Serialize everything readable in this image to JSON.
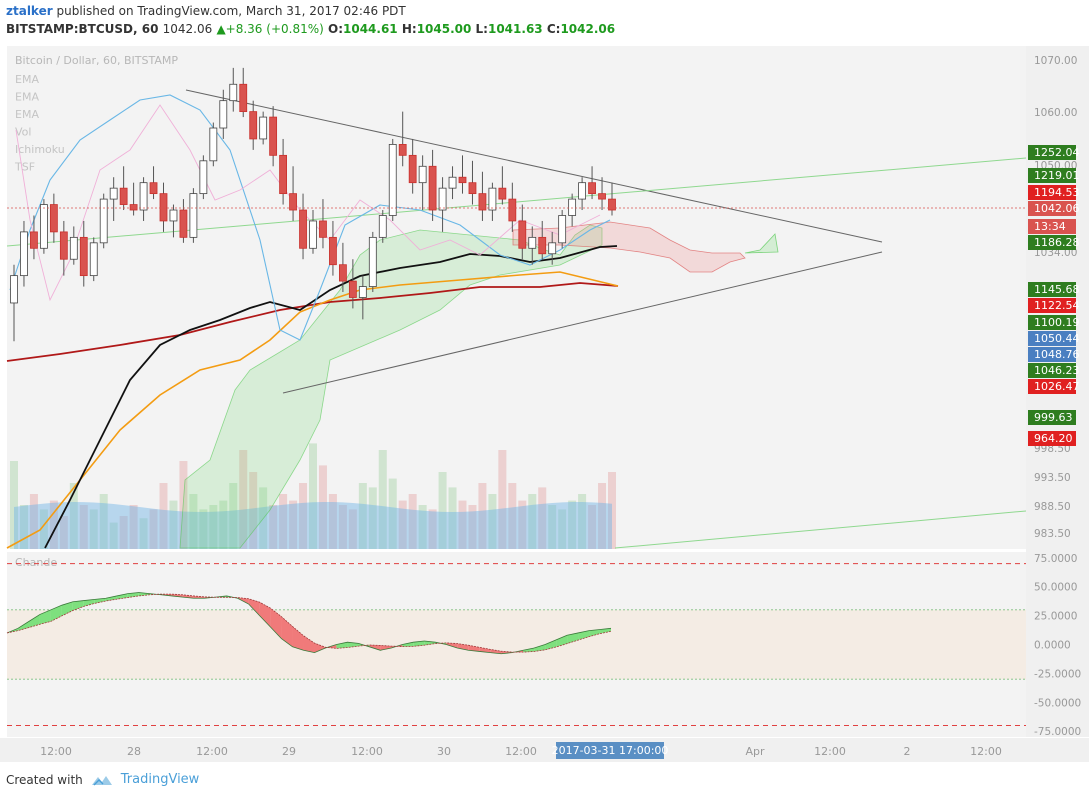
{
  "header": {
    "user": "ztalker",
    "published_text": "published on TradingView.com, March 31, 2017 02:46 PDT",
    "symbol": "BITSTAMP:BTCUSD, 60",
    "last": "1042.06",
    "change": "+8.36 (+0.81%)",
    "o_label": "O:",
    "o": "1044.61",
    "h_label": "H:",
    "h": "1045.00",
    "l_label": "L:",
    "l": "1041.63",
    "c_label": "C:",
    "c": "1042.06"
  },
  "chart_data": {
    "type": "candlestick",
    "title": "Bitcoin / Dollar, 60, BITSTAMP",
    "indicators": [
      "EMA",
      "EMA",
      "EMA",
      "Vol",
      "Ichimoku",
      "TSF"
    ],
    "price_axis_ticks": [
      "1070.00",
      "1060.00",
      "1050.00",
      "1034.00",
      "998.50",
      "993.50",
      "988.50",
      "983.50"
    ],
    "price_range": [
      980,
      1072
    ],
    "time_axis_ticks": [
      "12:00",
      "28",
      "12:00",
      "29",
      "12:00",
      "30",
      "12:00",
      "12:00",
      "Apr",
      "12:00",
      "2",
      "12:00"
    ],
    "crosshair_time": "2017-03-31 17:00:00",
    "price_tags": [
      {
        "label": "1252.04",
        "color": "#2e7d1f"
      },
      {
        "label": "1219.01",
        "color": "#2e7d1f"
      },
      {
        "label": "1194.53",
        "color": "#e02020"
      },
      {
        "label": "1042.06",
        "color": "#d9534f"
      },
      {
        "label": "13:34",
        "color": "#d9534f"
      },
      {
        "label": "1186.28",
        "color": "#2e7d1f"
      },
      {
        "label": "1145.68",
        "color": "#2e7d1f"
      },
      {
        "label": "1122.54",
        "color": "#e02020"
      },
      {
        "label": "1100.19",
        "color": "#2e7d1f"
      },
      {
        "label": "1050.44",
        "color": "#4a7fc1"
      },
      {
        "label": "1048.76",
        "color": "#4a7fc1"
      },
      {
        "label": "1046.23",
        "color": "#2e7d1f"
      },
      {
        "label": "1026.47",
        "color": "#e02020"
      },
      {
        "label": "999.63",
        "color": "#2e7d1f"
      },
      {
        "label": "964.20",
        "color": "#e02020"
      }
    ],
    "candles": [
      [
        1025,
        1032,
        1018,
        1030
      ],
      [
        1030,
        1040,
        1028,
        1038
      ],
      [
        1038,
        1041,
        1033,
        1035
      ],
      [
        1035,
        1044,
        1034,
        1043
      ],
      [
        1043,
        1045,
        1036,
        1038
      ],
      [
        1038,
        1040,
        1030,
        1033
      ],
      [
        1033,
        1039,
        1032,
        1037
      ],
      [
        1037,
        1040,
        1028,
        1030
      ],
      [
        1030,
        1037,
        1029,
        1036
      ],
      [
        1036,
        1045,
        1035,
        1044
      ],
      [
        1044,
        1048,
        1040,
        1046
      ],
      [
        1046,
        1050,
        1042,
        1043
      ],
      [
        1043,
        1047,
        1041,
        1042
      ],
      [
        1042,
        1048,
        1040,
        1047
      ],
      [
        1047,
        1050,
        1044,
        1045
      ],
      [
        1045,
        1047,
        1038,
        1040
      ],
      [
        1040,
        1043,
        1037,
        1042
      ],
      [
        1042,
        1044,
        1036,
        1037
      ],
      [
        1037,
        1046,
        1036,
        1045
      ],
      [
        1045,
        1052,
        1044,
        1051
      ],
      [
        1051,
        1058,
        1050,
        1057
      ],
      [
        1057,
        1064,
        1055,
        1062
      ],
      [
        1062,
        1068,
        1060,
        1065
      ],
      [
        1065,
        1068,
        1059,
        1060
      ],
      [
        1060,
        1062,
        1053,
        1055
      ],
      [
        1055,
        1060,
        1054,
        1059
      ],
      [
        1059,
        1061,
        1050,
        1052
      ],
      [
        1052,
        1055,
        1043,
        1045
      ],
      [
        1045,
        1050,
        1040,
        1042
      ],
      [
        1042,
        1045,
        1033,
        1035
      ],
      [
        1035,
        1042,
        1034,
        1040
      ],
      [
        1040,
        1044,
        1035,
        1037
      ],
      [
        1037,
        1040,
        1030,
        1032
      ],
      [
        1032,
        1036,
        1027,
        1029
      ],
      [
        1029,
        1033,
        1024,
        1026
      ],
      [
        1026,
        1030,
        1022,
        1028
      ],
      [
        1028,
        1038,
        1027,
        1037
      ],
      [
        1037,
        1042,
        1036,
        1041
      ],
      [
        1041,
        1055,
        1040,
        1054
      ],
      [
        1054,
        1060,
        1050,
        1052
      ],
      [
        1052,
        1055,
        1045,
        1047
      ],
      [
        1047,
        1052,
        1042,
        1050
      ],
      [
        1050,
        1053,
        1040,
        1042
      ],
      [
        1042,
        1048,
        1038,
        1046
      ],
      [
        1046,
        1050,
        1044,
        1048
      ],
      [
        1048,
        1052,
        1045,
        1047
      ],
      [
        1047,
        1051,
        1043,
        1045
      ],
      [
        1045,
        1049,
        1040,
        1042
      ],
      [
        1042,
        1047,
        1040,
        1046
      ],
      [
        1046,
        1050,
        1043,
        1044
      ],
      [
        1044,
        1047,
        1038,
        1040
      ],
      [
        1040,
        1043,
        1033,
        1035
      ],
      [
        1035,
        1039,
        1032,
        1037
      ],
      [
        1037,
        1040,
        1033,
        1034
      ],
      [
        1034,
        1038,
        1032,
        1036
      ],
      [
        1036,
        1042,
        1035,
        1041
      ],
      [
        1041,
        1045,
        1039,
        1044
      ],
      [
        1044,
        1048,
        1042,
        1047
      ],
      [
        1047,
        1050,
        1044,
        1045
      ],
      [
        1045,
        1048,
        1042,
        1044
      ],
      [
        1044,
        1047,
        1041,
        1042
      ]
    ],
    "volume": [
      40,
      20,
      25,
      18,
      22,
      15,
      30,
      20,
      18,
      25,
      12,
      15,
      20,
      14,
      18,
      30,
      22,
      40,
      25,
      18,
      20,
      22,
      30,
      45,
      35,
      28,
      20,
      25,
      22,
      30,
      48,
      38,
      25,
      20,
      18,
      30,
      28,
      45,
      32,
      22,
      25,
      20,
      18,
      35,
      28,
      22,
      20,
      30,
      25,
      45,
      30,
      22,
      25,
      28,
      20,
      18,
      22,
      25,
      20,
      30,
      35
    ],
    "chande": {
      "name": "Chande",
      "ticks": [
        "75.0000",
        "50.0000",
        "25.0000",
        "0.0000",
        "-25.0000",
        "-50.0000",
        "-75.0000"
      ],
      "range": [
        -80,
        80
      ],
      "bands": [
        70,
        30,
        -30,
        -70
      ],
      "values": [
        10,
        14,
        20,
        26,
        30,
        34,
        37,
        38,
        39,
        40,
        42,
        44,
        45,
        44,
        43,
        42,
        41,
        40,
        40,
        41,
        42,
        40,
        35,
        25,
        15,
        5,
        -2,
        -5,
        -7,
        -3,
        0,
        2,
        1,
        -2,
        -5,
        -3,
        0,
        2,
        3,
        2,
        0,
        -3,
        -5,
        -6,
        -7,
        -8,
        -7,
        -5,
        -3,
        0,
        4,
        8,
        10,
        12,
        13,
        14
      ]
    }
  },
  "footer": {
    "created_with": "Created with",
    "brand": "TradingView"
  }
}
